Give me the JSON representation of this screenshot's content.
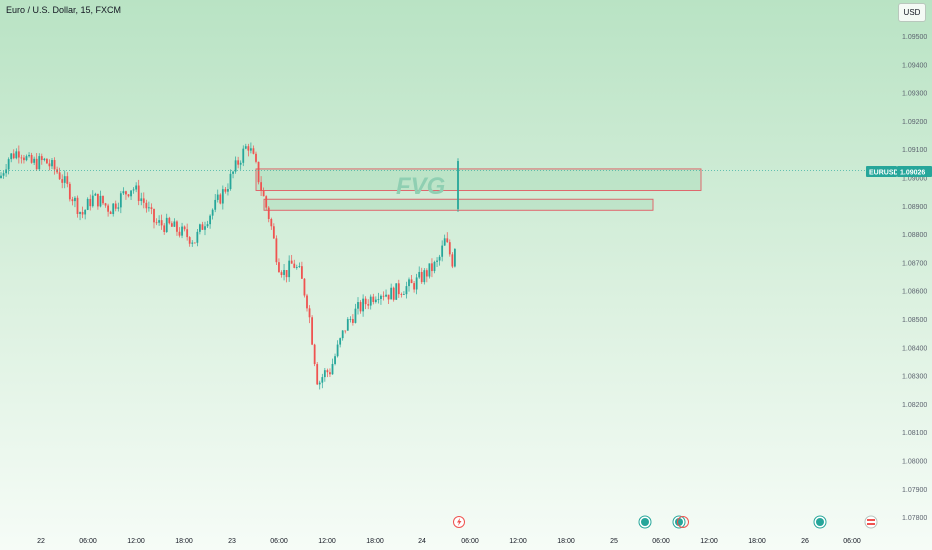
{
  "header": {
    "title": "Euro / U.S. Dollar, 15, FXCM",
    "currency_button": "USD"
  },
  "colors": {
    "up": "#26a69a",
    "down": "#ef5350",
    "zone_border": "#e05a62",
    "zone_fill": "#a8dcb8",
    "tag": "#26a69a"
  },
  "chart_data": {
    "type": "candlestick",
    "symbol": "EURUSD",
    "last_price": "1.09026",
    "last_price_value": 1.09026,
    "annotation": "FVG",
    "y_axis": {
      "ticks": [
        "1.09500",
        "1.09400",
        "1.09300",
        "1.09200",
        "1.09100",
        "1.09000",
        "1.08900",
        "1.08800",
        "1.08700",
        "1.08600",
        "1.08500",
        "1.08400",
        "1.08300",
        "1.08200",
        "1.08100",
        "1.08000",
        "1.07900",
        "1.07800"
      ],
      "range": [
        1.0775,
        1.0965
      ]
    },
    "x_axis": {
      "ticks": [
        "22",
        "06:00",
        "12:00",
        "18:00",
        "23",
        "06:00",
        "12:00",
        "18:00",
        "24",
        "06:00",
        "12:00",
        "18:00",
        "25",
        "06:00",
        "12:00",
        "18:00",
        "26",
        "06:00"
      ]
    },
    "zones": [
      {
        "from_tick": "23",
        "to_tick": "12:00",
        "top": 1.09032,
        "bottom": 1.08956
      },
      {
        "from_tick": "06:00",
        "to_tick": "12:00",
        "top": 1.08925,
        "bottom": 1.08886
      }
    ],
    "grid": false,
    "events": [
      "lightning-icon",
      "event-dot",
      "event-dot",
      "event-dot",
      "flag-icon"
    ]
  }
}
